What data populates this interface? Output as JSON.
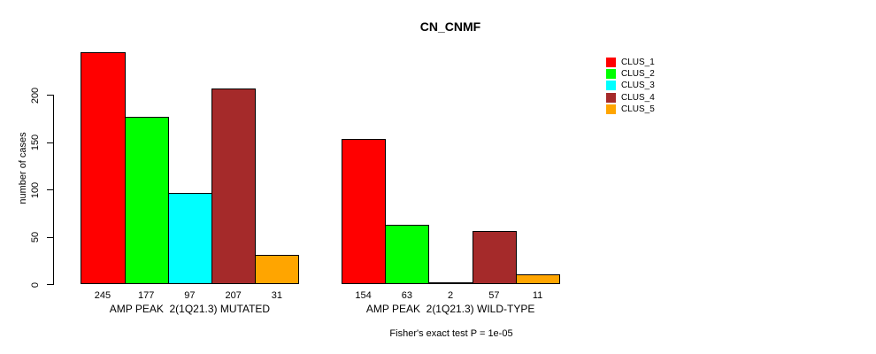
{
  "chart_data": {
    "type": "bar",
    "title": "CN_CNMF",
    "xlabel": "",
    "ylabel": "number of cases",
    "ylim": [
      0,
      245
    ],
    "yticks": [
      0,
      50,
      100,
      150,
      200
    ],
    "grid": false,
    "legend_position": "right",
    "bar_value_labels": true,
    "categories": [
      "AMP PEAK  2(1Q21.3) MUTATED",
      "AMP PEAK  2(1Q21.3) WILD-TYPE"
    ],
    "series": [
      {
        "name": "CLUS_1",
        "color": "#FF0000",
        "values": [
          245,
          154
        ]
      },
      {
        "name": "CLUS_2",
        "color": "#00FF00",
        "values": [
          177,
          63
        ]
      },
      {
        "name": "CLUS_3",
        "color": "#00FFFF",
        "values": [
          97,
          2
        ]
      },
      {
        "name": "CLUS_4",
        "color": "#A52A2A",
        "values": [
          207,
          57
        ]
      },
      {
        "name": "CLUS_5",
        "color": "#FFA500",
        "values": [
          31,
          11
        ]
      }
    ],
    "annotation": "Fisher's exact test P = 1e-05",
    "axis_color": "#000000",
    "background_color": "#FFFFFF"
  }
}
